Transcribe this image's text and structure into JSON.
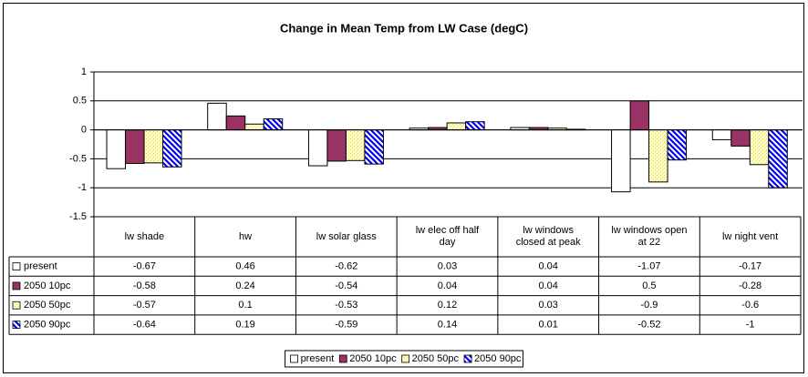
{
  "chart_data": {
    "type": "bar",
    "title": "Change in Mean Temp from LW Case (degC)",
    "categories": [
      "lw shade",
      "hw",
      "lw solar glass",
      "lw elec off half day",
      "lw windows closed at peak",
      "lw windows open at 22",
      "lw night vent"
    ],
    "series": [
      {
        "name": "present",
        "color": "#ffffff",
        "values": [
          -0.67,
          0.46,
          -0.62,
          0.03,
          0.04,
          -1.07,
          -0.17
        ]
      },
      {
        "name": "2050 10pc",
        "color": "#993366",
        "values": [
          -0.58,
          0.24,
          -0.54,
          0.04,
          0.04,
          0.5,
          -0.28
        ]
      },
      {
        "name": "2050 50pc",
        "color": "#e8d84a",
        "pattern": "dots",
        "values": [
          -0.57,
          0.1,
          -0.53,
          0.12,
          0.03,
          -0.9,
          -0.6
        ]
      },
      {
        "name": "2050 90pc",
        "color": "#0000ff",
        "pattern": "stripes",
        "values": [
          -0.64,
          0.19,
          -0.59,
          0.14,
          0.01,
          -0.52,
          -1
        ]
      }
    ],
    "ylim": [
      -1.5,
      1
    ],
    "yticks": [
      -1.5,
      -1,
      -0.5,
      0,
      0.5,
      1
    ],
    "grid": true,
    "legend": "bottom",
    "data_table": true
  }
}
